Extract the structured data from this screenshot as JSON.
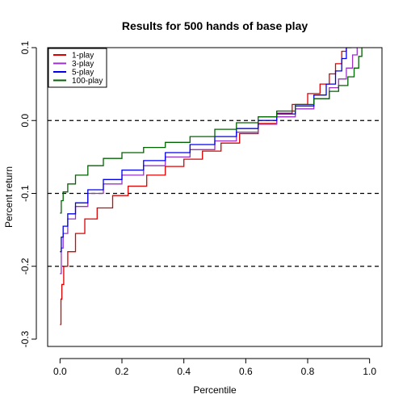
{
  "chart_data": {
    "type": "line",
    "title": "Results for 500 hands of base play",
    "xlabel": "Percentile",
    "ylabel": "Percent return",
    "xlim": [
      -0.04,
      1.04
    ],
    "ylim": [
      -0.31,
      0.1
    ],
    "x_ticks": [
      0.0,
      0.2,
      0.4,
      0.6,
      0.8,
      1.0
    ],
    "x_tick_labels": [
      "0.0",
      "0.2",
      "0.4",
      "0.6",
      "0.8",
      "1.0"
    ],
    "y_ticks": [
      -0.3,
      -0.2,
      -0.1,
      0.0,
      0.1
    ],
    "y_tick_labels": [
      "-0.3",
      "-0.2",
      "-0.1",
      "0.0",
      "0.1"
    ],
    "reference_lines": [
      {
        "axis": "y",
        "value": 0.0,
        "style": "dashed"
      },
      {
        "axis": "y",
        "value": -0.1,
        "style": "dashed"
      },
      {
        "axis": "y",
        "value": -0.2,
        "style": "dashed"
      }
    ],
    "legend_position": "top-left",
    "grid": false,
    "series": [
      {
        "name": "1-play",
        "color": "#dd0000",
        "points": [
          [
            0.0,
            -0.28
          ],
          [
            0.003,
            -0.245
          ],
          [
            0.006,
            -0.225
          ],
          [
            0.012,
            -0.2
          ],
          [
            0.025,
            -0.18
          ],
          [
            0.05,
            -0.155
          ],
          [
            0.08,
            -0.135
          ],
          [
            0.12,
            -0.12
          ],
          [
            0.17,
            -0.103
          ],
          [
            0.22,
            -0.09
          ],
          [
            0.28,
            -0.075
          ],
          [
            0.34,
            -0.063
          ],
          [
            0.4,
            -0.053
          ],
          [
            0.46,
            -0.042
          ],
          [
            0.52,
            -0.031
          ],
          [
            0.58,
            -0.018
          ],
          [
            0.64,
            -0.004
          ],
          [
            0.7,
            0.01
          ],
          [
            0.75,
            0.022
          ],
          [
            0.8,
            0.037
          ],
          [
            0.84,
            0.05
          ],
          [
            0.87,
            0.064
          ],
          [
            0.89,
            0.078
          ],
          [
            0.91,
            0.095
          ],
          [
            0.925,
            0.11
          ],
          [
            0.935,
            0.125
          ]
        ]
      },
      {
        "name": "3-play",
        "color": "#9b30c9",
        "points": [
          [
            0.0,
            -0.21
          ],
          [
            0.004,
            -0.175
          ],
          [
            0.01,
            -0.155
          ],
          [
            0.025,
            -0.135
          ],
          [
            0.05,
            -0.118
          ],
          [
            0.09,
            -0.1
          ],
          [
            0.14,
            -0.087
          ],
          [
            0.2,
            -0.075
          ],
          [
            0.27,
            -0.062
          ],
          [
            0.34,
            -0.05
          ],
          [
            0.42,
            -0.04
          ],
          [
            0.5,
            -0.028
          ],
          [
            0.57,
            -0.016
          ],
          [
            0.64,
            -0.005
          ],
          [
            0.7,
            0.005
          ],
          [
            0.76,
            0.016
          ],
          [
            0.82,
            0.03
          ],
          [
            0.87,
            0.045
          ],
          [
            0.9,
            0.057
          ],
          [
            0.925,
            0.072
          ],
          [
            0.945,
            0.09
          ],
          [
            0.96,
            0.108
          ],
          [
            0.97,
            0.125
          ]
        ]
      },
      {
        "name": "5-play",
        "color": "#0000ee",
        "points": [
          [
            0.0,
            -0.18
          ],
          [
            0.004,
            -0.16
          ],
          [
            0.01,
            -0.145
          ],
          [
            0.025,
            -0.128
          ],
          [
            0.05,
            -0.113
          ],
          [
            0.09,
            -0.095
          ],
          [
            0.14,
            -0.081
          ],
          [
            0.2,
            -0.068
          ],
          [
            0.27,
            -0.055
          ],
          [
            0.34,
            -0.044
          ],
          [
            0.42,
            -0.033
          ],
          [
            0.5,
            -0.022
          ],
          [
            0.57,
            -0.011
          ],
          [
            0.64,
            0.0
          ],
          [
            0.7,
            0.009
          ],
          [
            0.76,
            0.02
          ],
          [
            0.82,
            0.035
          ],
          [
            0.86,
            0.05
          ],
          [
            0.89,
            0.068
          ],
          [
            0.91,
            0.085
          ],
          [
            0.925,
            0.1
          ],
          [
            0.94,
            0.115
          ],
          [
            0.95,
            0.125
          ]
        ]
      },
      {
        "name": "100-play",
        "color": "#006400",
        "points": [
          [
            0.0,
            -0.127
          ],
          [
            0.004,
            -0.11
          ],
          [
            0.01,
            -0.098
          ],
          [
            0.025,
            -0.087
          ],
          [
            0.05,
            -0.075
          ],
          [
            0.09,
            -0.062
          ],
          [
            0.14,
            -0.052
          ],
          [
            0.2,
            -0.044
          ],
          [
            0.27,
            -0.037
          ],
          [
            0.34,
            -0.03
          ],
          [
            0.42,
            -0.022
          ],
          [
            0.5,
            -0.012
          ],
          [
            0.57,
            -0.003
          ],
          [
            0.64,
            0.005
          ],
          [
            0.7,
            0.013
          ],
          [
            0.76,
            0.022
          ],
          [
            0.82,
            0.03
          ],
          [
            0.87,
            0.04
          ],
          [
            0.9,
            0.048
          ],
          [
            0.93,
            0.06
          ],
          [
            0.95,
            0.072
          ],
          [
            0.965,
            0.088
          ],
          [
            0.975,
            0.103
          ],
          [
            0.985,
            0.115
          ],
          [
            0.995,
            0.125
          ]
        ]
      }
    ]
  }
}
